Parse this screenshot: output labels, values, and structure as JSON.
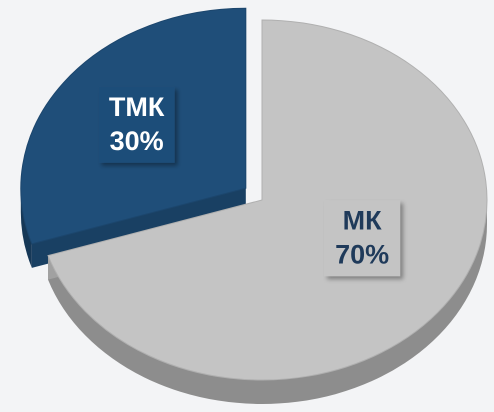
{
  "chart_data": {
    "type": "pie",
    "categories": [
      "ТМК",
      "МК"
    ],
    "values": [
      30,
      70
    ],
    "value_labels": [
      "30%",
      "70%"
    ],
    "colors": [
      "#1f4e79",
      "#c4c4c4"
    ]
  }
}
